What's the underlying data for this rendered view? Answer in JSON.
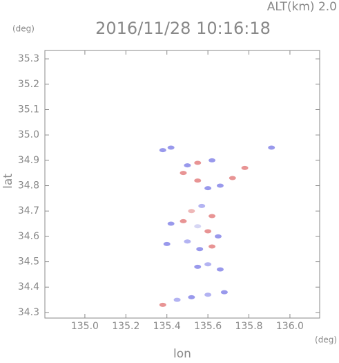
{
  "chart_data": {
    "type": "scatter",
    "title": "2016/11/28 10:16:18",
    "subtitle": "ALT(km) 2.0",
    "y_unit": "(deg)",
    "x_unit": "(deg)",
    "xlabel": "lon",
    "ylabel": "lat",
    "xlim": [
      134.805,
      136.145
    ],
    "ylim": [
      34.278,
      35.333
    ],
    "xticks": [
      {
        "value": 135,
        "label": "135.0"
      },
      135.2,
      135.4,
      135.6,
      135.8,
      {
        "value": 136,
        "label": "136.0"
      }
    ],
    "yticks": [
      34.3,
      34.4,
      34.5,
      34.6,
      34.7,
      34.8,
      34.9,
      {
        "value": 35,
        "label": "35.0"
      },
      35.1,
      35.2,
      35.3
    ],
    "x": [
      135.38,
      135.42,
      135.5,
      135.55,
      135.62,
      135.78,
      135.91,
      135.48,
      135.55,
      135.6,
      135.66,
      135.72,
      135.52,
      135.57,
      135.62,
      135.48,
      135.55,
      135.6,
      135.65,
      135.5,
      135.56,
      135.62,
      135.42,
      135.4,
      135.55,
      135.6,
      135.66,
      135.38,
      135.45,
      135.52,
      135.6,
      135.68
    ],
    "values": [
      34.94,
      34.95,
      34.88,
      34.89,
      34.9,
      34.87,
      34.95,
      34.85,
      34.82,
      34.79,
      34.8,
      34.83,
      34.7,
      34.72,
      34.68,
      34.66,
      34.64,
      34.62,
      34.6,
      34.58,
      34.55,
      34.56,
      34.65,
      34.57,
      34.48,
      34.49,
      34.47,
      34.33,
      34.35,
      34.36,
      34.37,
      34.38
    ],
    "colors": [
      "#7777e6",
      "#7777e6",
      "#7777e6",
      "#e07070",
      "#7777e6",
      "#e07070",
      "#7777e6",
      "#e07070",
      "#e07070",
      "#7777e6",
      "#7777e6",
      "#e07070",
      "#e8a0a0",
      "#9a9aee",
      "#e07070",
      "#e07070",
      "#c8c8f0",
      "#e07070",
      "#7777e6",
      "#9a9aee",
      "#7777e6",
      "#e07070",
      "#7777e6",
      "#7777e6",
      "#7777e6",
      "#9a9aee",
      "#7777e6",
      "#e07070",
      "#9a9aee",
      "#7777e6",
      "#9a9aee",
      "#7777e6"
    ]
  }
}
